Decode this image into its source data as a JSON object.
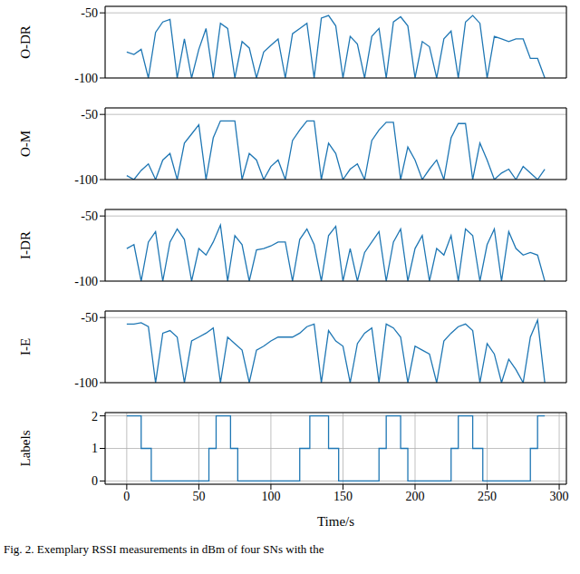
{
  "caption": "Fig. 2.  Exemplary RSSI measurements in dBm of four SNs with the",
  "chart_data": [
    {
      "type": "line",
      "ylabel": "O-DR",
      "color": "#1f77b4",
      "grid": true,
      "tick_labels": "y",
      "xlim": [
        -15,
        305
      ],
      "xticks": [
        0,
        50,
        100,
        150,
        200,
        250,
        300
      ],
      "ylim": [
        -100,
        -45
      ],
      "yticks": [
        -100,
        -50
      ],
      "x": [
        0,
        5,
        10,
        15,
        20,
        25,
        30,
        35,
        40,
        45,
        50,
        55,
        60,
        65,
        70,
        75,
        80,
        85,
        90,
        95,
        100,
        105,
        110,
        115,
        120,
        125,
        130,
        135,
        140,
        145,
        150,
        155,
        160,
        165,
        170,
        175,
        180,
        185,
        190,
        195,
        200,
        205,
        210,
        215,
        220,
        225,
        230,
        235,
        240,
        245,
        250,
        255,
        260,
        265,
        270,
        275,
        280,
        285,
        290
      ],
      "values": [
        -80,
        -82,
        -78,
        -100,
        -65,
        -57,
        -55,
        -100,
        -70,
        -100,
        -78,
        -62,
        -100,
        -58,
        -62,
        -100,
        -72,
        -77,
        -100,
        -80,
        -75,
        -70,
        -100,
        -66,
        -62,
        -58,
        -100,
        -54,
        -52,
        -60,
        -100,
        -68,
        -74,
        -100,
        -68,
        -62,
        -100,
        -57,
        -53,
        -60,
        -100,
        -72,
        -76,
        -100,
        -70,
        -64,
        -100,
        -57,
        -52,
        -58,
        -100,
        -68,
        -70,
        -72,
        -70,
        -70,
        -85,
        -85,
        -100
      ]
    },
    {
      "type": "line",
      "ylabel": "O-M",
      "color": "#1f77b4",
      "grid": true,
      "tick_labels": "y",
      "xlim": [
        -15,
        305
      ],
      "xticks": [
        0,
        50,
        100,
        150,
        200,
        250,
        300
      ],
      "ylim": [
        -100,
        -45
      ],
      "yticks": [
        -100,
        -50
      ],
      "x": [
        0,
        5,
        10,
        15,
        20,
        25,
        30,
        35,
        40,
        45,
        50,
        55,
        60,
        65,
        70,
        75,
        80,
        85,
        90,
        95,
        100,
        105,
        110,
        115,
        120,
        125,
        130,
        135,
        140,
        145,
        150,
        155,
        160,
        165,
        170,
        175,
        180,
        185,
        190,
        195,
        200,
        205,
        210,
        215,
        220,
        225,
        230,
        235,
        240,
        245,
        250,
        255,
        260,
        265,
        270,
        275,
        280,
        285,
        290
      ],
      "values": [
        -97,
        -100,
        -93,
        -88,
        -100,
        -85,
        -80,
        -100,
        -72,
        -65,
        -58,
        -100,
        -68,
        -55,
        -55,
        -55,
        -100,
        -80,
        -85,
        -100,
        -90,
        -85,
        -100,
        -70,
        -62,
        -55,
        -55,
        -100,
        -72,
        -80,
        -100,
        -92,
        -88,
        -100,
        -70,
        -62,
        -56,
        -56,
        -100,
        -75,
        -85,
        -100,
        -92,
        -85,
        -100,
        -68,
        -57,
        -57,
        -100,
        -72,
        -85,
        -100,
        -95,
        -92,
        -100,
        -90,
        -95,
        -100,
        -92
      ]
    },
    {
      "type": "line",
      "ylabel": "I-DR",
      "color": "#1f77b4",
      "grid": true,
      "tick_labels": "y",
      "xlim": [
        -15,
        305
      ],
      "xticks": [
        0,
        50,
        100,
        150,
        200,
        250,
        300
      ],
      "ylim": [
        -100,
        -45
      ],
      "yticks": [
        -100,
        -50
      ],
      "x": [
        0,
        5,
        10,
        15,
        20,
        25,
        30,
        35,
        40,
        45,
        50,
        55,
        60,
        65,
        70,
        75,
        80,
        85,
        90,
        95,
        100,
        105,
        110,
        115,
        120,
        125,
        130,
        135,
        140,
        145,
        150,
        155,
        160,
        165,
        170,
        175,
        180,
        185,
        190,
        195,
        200,
        205,
        210,
        215,
        220,
        225,
        230,
        235,
        240,
        245,
        250,
        255,
        260,
        265,
        270,
        275,
        280,
        285,
        290
      ],
      "values": [
        -75,
        -72,
        -100,
        -70,
        -62,
        -100,
        -70,
        -60,
        -68,
        -100,
        -75,
        -80,
        -70,
        -57,
        -100,
        -65,
        -72,
        -100,
        -76,
        -75,
        -73,
        -70,
        -70,
        -100,
        -68,
        -60,
        -72,
        -100,
        -65,
        -58,
        -100,
        -75,
        -100,
        -78,
        -70,
        -62,
        -100,
        -70,
        -60,
        -100,
        -75,
        -65,
        -100,
        -75,
        -80,
        -65,
        -100,
        -60,
        -65,
        -100,
        -72,
        -60,
        -100,
        -62,
        -75,
        -80,
        -78,
        -80,
        -100
      ]
    },
    {
      "type": "line",
      "ylabel": "I-E",
      "color": "#1f77b4",
      "grid": true,
      "tick_labels": "y",
      "xlim": [
        -15,
        305
      ],
      "xticks": [
        0,
        50,
        100,
        150,
        200,
        250,
        300
      ],
      "ylim": [
        -100,
        -45
      ],
      "yticks": [
        -100,
        -50
      ],
      "x": [
        0,
        5,
        10,
        15,
        20,
        25,
        30,
        35,
        40,
        45,
        50,
        55,
        60,
        65,
        70,
        75,
        80,
        85,
        90,
        95,
        100,
        105,
        110,
        115,
        120,
        125,
        130,
        135,
        140,
        145,
        150,
        155,
        160,
        165,
        170,
        175,
        180,
        185,
        190,
        195,
        200,
        205,
        210,
        215,
        220,
        225,
        230,
        235,
        240,
        245,
        250,
        255,
        260,
        265,
        270,
        275,
        280,
        285,
        290
      ],
      "values": [
        -55,
        -55,
        -54,
        -57,
        -100,
        -62,
        -60,
        -65,
        -100,
        -68,
        -65,
        -62,
        -58,
        -100,
        -65,
        -70,
        -75,
        -100,
        -75,
        -72,
        -68,
        -65,
        -65,
        -65,
        -62,
        -57,
        -55,
        -100,
        -60,
        -68,
        -72,
        -100,
        -70,
        -62,
        -58,
        -100,
        -55,
        -58,
        -65,
        -100,
        -72,
        -75,
        -78,
        -100,
        -68,
        -62,
        -57,
        -55,
        -60,
        -100,
        -70,
        -78,
        -100,
        -82,
        -90,
        -100,
        -65,
        -52,
        -100
      ]
    },
    {
      "type": "line",
      "ylabel": "Labels",
      "xlabel": "Time/s",
      "color": "#1f77b4",
      "grid": true,
      "line_style": "step",
      "xlim": [
        -15,
        305
      ],
      "xticks": [
        0,
        50,
        100,
        150,
        200,
        250,
        300
      ],
      "ylim": [
        -0.1,
        2.1
      ],
      "yticks": [
        0,
        1,
        2
      ],
      "x": [
        0,
        10,
        17,
        57,
        62,
        72,
        77,
        120,
        127,
        140,
        147,
        175,
        180,
        190,
        195,
        225,
        230,
        240,
        247,
        280,
        285,
        290
      ],
      "values": [
        2,
        1,
        0,
        1,
        2,
        1,
        0,
        1,
        2,
        1,
        0,
        1,
        2,
        1,
        0,
        1,
        2,
        1,
        0,
        1,
        2,
        2
      ]
    }
  ]
}
